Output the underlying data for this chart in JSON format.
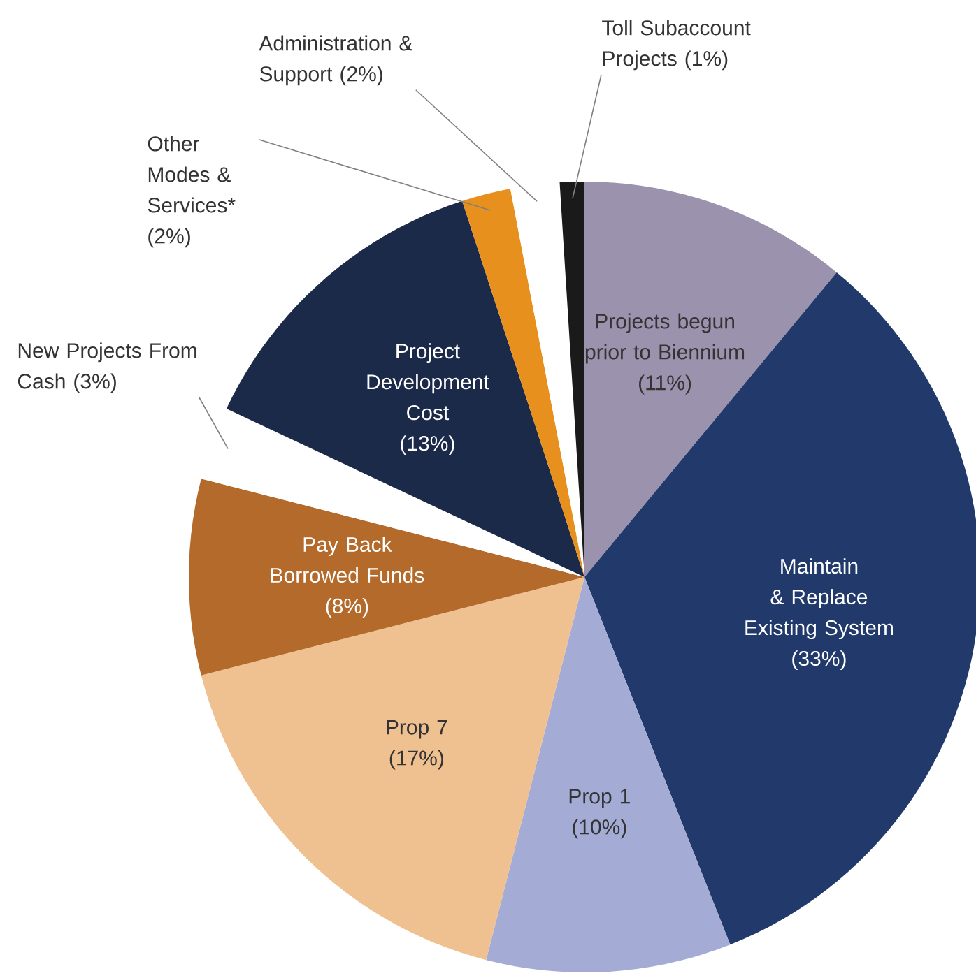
{
  "chart_data": {
    "type": "pie",
    "value_labels": [
      "(11%)",
      "(33%)",
      "(10%)",
      "(17%)",
      "(8%)",
      "(3%)",
      "(13%)",
      "(2%)",
      "(2%)",
      "(1%)"
    ],
    "categories": [
      "Projects begun prior to Biennium",
      "Maintain & Replace Existing System",
      "Prop 1",
      "Prop 7",
      "Pay Back Borrowed Funds",
      "New Projects From Cash",
      "Project Development Cost",
      "Other Modes & Services*",
      "Administration & Support",
      "Toll Subaccount Projects"
    ],
    "values": [
      11,
      33,
      10,
      17,
      8,
      3,
      13,
      2,
      2,
      1
    ],
    "colors": [
      "#9b93ae",
      "#223a6b",
      "#a4acd6",
      "#f0c190",
      "#b36a2a",
      "#ffffff",
      "#1c2a4a",
      "#e8901e",
      "#ffffff",
      "#1a1a1a"
    ]
  }
}
